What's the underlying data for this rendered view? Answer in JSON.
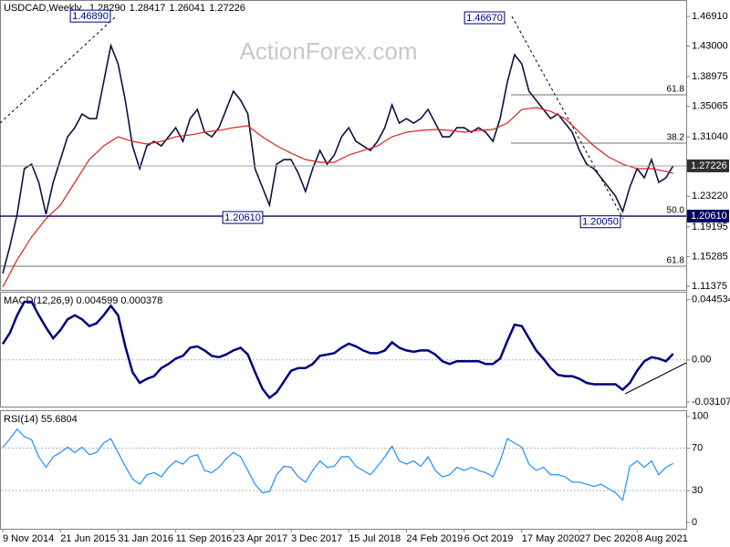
{
  "chart_data": [
    {
      "type": "line",
      "symbol": "USDCAD,Weekly",
      "ohlc": [
        "1.28290",
        "1.28417",
        "1.26041",
        "1.27226"
      ],
      "watermark": "ActionForex.com",
      "ylim": [
        1.11375,
        1.4691
      ],
      "yticks": [
        {
          "value": 1.4691,
          "label": "1.46910"
        },
        {
          "value": 1.43,
          "label": "1.43000"
        },
        {
          "value": 1.38975,
          "label": "1.38975"
        },
        {
          "value": 1.35065,
          "label": "1.35065"
        },
        {
          "value": 1.3104,
          "label": "1.31040"
        },
        {
          "value": 1.2322,
          "label": "1.23220"
        },
        {
          "value": 1.19195,
          "label": "1.19195"
        },
        {
          "value": 1.15285,
          "label": "1.15285"
        },
        {
          "value": 1.11375,
          "label": "1.11375"
        }
      ],
      "price_lines": [
        {
          "value": 1.27226,
          "label": "1.27226",
          "color": "#a0a0a0"
        },
        {
          "value": 1.2061,
          "label": "1.20610",
          "color": "#000060"
        }
      ],
      "levels": [
        {
          "value": 1.3659,
          "label": "61.8"
        },
        {
          "value": 1.3022,
          "label": "38.2"
        },
        {
          "value": 1.2061,
          "label": "50.0"
        },
        {
          "value": 1.1402,
          "label": "61.8"
        }
      ],
      "annotations": [
        {
          "text": "1.46890",
          "value": 1.4689
        },
        {
          "text": "1.46670",
          "value": 1.4667
        },
        {
          "text": "1.20610",
          "value": 1.2061
        },
        {
          "text": "1.20050",
          "value": 1.2005
        }
      ],
      "series": [
        {
          "color": "#101040",
          "values": [
            1.1306,
            1.1666,
            1.2086,
            1.2686,
            1.2746,
            1.2506,
            1.2086,
            1.2506,
            1.2806,
            1.3106,
            1.3226,
            1.3406,
            1.3346,
            1.3346,
            1.3827,
            1.4307,
            1.4067,
            1.3587,
            1.2986,
            1.2686,
            1.2986,
            1.3046,
            1.2986,
            1.3106,
            1.3226,
            1.3046,
            1.3346,
            1.3466,
            1.3166,
            1.3106,
            1.3226,
            1.3466,
            1.3707,
            1.3587,
            1.3406,
            1.2686,
            1.2446,
            1.2206,
            1.2746,
            1.2806,
            1.2806,
            1.2626,
            1.2386,
            1.2686,
            1.2926,
            1.2746,
            1.2866,
            1.3106,
            1.3226,
            1.3046,
            1.2986,
            1.2926,
            1.3046,
            1.3226,
            1.3526,
            1.3286,
            1.3346,
            1.3286,
            1.3346,
            1.3466,
            1.3286,
            1.3106,
            1.3106,
            1.3226,
            1.3226,
            1.3166,
            1.3226,
            1.3166,
            1.3046,
            1.3346,
            1.3827,
            1.4187,
            1.4067,
            1.3707,
            1.3587,
            1.3466,
            1.3346,
            1.3406,
            1.3286,
            1.3166,
            1.2926,
            1.2746,
            1.2686,
            1.2566,
            1.2446,
            1.2326,
            1.2122,
            1.2446,
            1.2686,
            1.2566,
            1.2806,
            1.2506,
            1.2566,
            1.27226
          ]
        },
        {
          "color": "#e02020",
          "values": [
            1.1126,
            1.1306,
            1.1486,
            1.1636,
            1.1786,
            1.1906,
            1.2026,
            1.2116,
            1.2206,
            1.2356,
            1.2506,
            1.2656,
            1.2806,
            1.2896,
            1.2986,
            1.3046,
            1.3106,
            1.3076,
            1.3046,
            1.3028,
            1.301,
            1.3028,
            1.3046,
            1.3076,
            1.3106,
            1.3118,
            1.313,
            1.3148,
            1.3166,
            1.3178,
            1.319,
            1.3208,
            1.3226,
            1.3238,
            1.325,
            1.3178,
            1.3106,
            1.3046,
            1.2986,
            1.2938,
            1.289,
            1.2848,
            1.2806,
            1.2788,
            1.277,
            1.277,
            1.277,
            1.2818,
            1.2866,
            1.2896,
            1.2926,
            1.2956,
            1.2986,
            1.3046,
            1.3106,
            1.3136,
            1.3166,
            1.3178,
            1.319,
            1.3196,
            1.3202,
            1.3196,
            1.319,
            1.3178,
            1.3166,
            1.3178,
            1.319,
            1.3196,
            1.3202,
            1.3244,
            1.3286,
            1.3376,
            1.3466,
            1.3478,
            1.349,
            1.3466,
            1.3442,
            1.3394,
            1.3346,
            1.3256,
            1.3166,
            1.3076,
            1.2986,
            1.2914,
            1.2842,
            1.2794,
            1.2746,
            1.2716,
            1.2686,
            1.2686,
            1.2686,
            1.2668,
            1.265,
            1.2626
          ]
        }
      ]
    },
    {
      "type": "line",
      "label": "MACD(12,26,9) 0.004599 0.000378",
      "ylim": [
        -0.0345,
        0.0497
      ],
      "yticks": [
        0.044534,
        {
          "value": 0,
          "label": "0.00"
        },
        -0.031072
      ],
      "series": [
        {
          "color": "#000080",
          "values": [
            0.0118,
            0.02,
            0.033,
            0.043,
            0.043,
            0.033,
            0.024,
            0.016,
            0.022,
            0.03,
            0.033,
            0.03,
            0.025,
            0.027,
            0.033,
            0.04,
            0.033,
            0.01,
            -0.009,
            -0.017,
            -0.014,
            -0.012,
            -0.006,
            -0.003,
            0.001,
            0.003,
            0.009,
            0.01,
            0.007,
            0.003,
            0.002,
            0.004,
            0.007,
            0.009,
            0.004,
            -0.009,
            -0.021,
            -0.028,
            -0.024,
            -0.016,
            -0.008,
            -0.006,
            -0.006,
            -0.003,
            0.003,
            0.004,
            0.005,
            0.009,
            0.012,
            0.01,
            0.007,
            0.005,
            0.005,
            0.007,
            0.013,
            0.009,
            0.007,
            0.006,
            0.007,
            0.007,
            0.004,
            -0.001,
            -0.003,
            -0.001,
            -0.001,
            -0.001,
            -0.001,
            -0.003,
            -0.003,
            0.001,
            0.014,
            0.026,
            0.025,
            0.016,
            0.007,
            0.001,
            -0.006,
            -0.011,
            -0.012,
            -0.012,
            -0.014,
            -0.017,
            -0.018,
            -0.018,
            -0.018,
            -0.018,
            -0.022,
            -0.017,
            -0.008,
            -0.001,
            0.002,
            0.001,
            -0.001,
            0.0046
          ]
        }
      ]
    },
    {
      "type": "line",
      "label": "RSI(14) 55.6804",
      "ylim": [
        -6,
        105
      ],
      "yticks": [
        100,
        70,
        30,
        0
      ],
      "categories": [
        "9 Nov 2014",
        null,
        null,
        null,
        null,
        null,
        null,
        null,
        "21 Jun 2015",
        null,
        null,
        null,
        null,
        null,
        null,
        null,
        "31 Jan 2016",
        null,
        null,
        null,
        null,
        null,
        null,
        null,
        "11 Sep 2016",
        null,
        null,
        null,
        null,
        null,
        null,
        null,
        "23 Apr 2017",
        null,
        null,
        null,
        null,
        null,
        null,
        null,
        "3 Dec 2017",
        null,
        null,
        null,
        null,
        null,
        null,
        null,
        "15 Jul 2018",
        null,
        null,
        null,
        null,
        null,
        null,
        null,
        "24 Feb 2019",
        null,
        null,
        null,
        null,
        null,
        null,
        null,
        "6 Oct 2019",
        null,
        null,
        null,
        null,
        null,
        null,
        null,
        "17 May 2020",
        null,
        null,
        null,
        null,
        null,
        null,
        null,
        "27 Dec 2020",
        null,
        null,
        null,
        null,
        null,
        null,
        null,
        "8 Aug 2021",
        null,
        null,
        null,
        null,
        null
      ],
      "series": [
        {
          "color": "#1e90ff",
          "values": [
            70.7,
            79,
            88,
            81,
            78,
            62,
            52,
            62,
            66,
            71,
            66,
            71,
            64,
            66,
            75,
            79,
            66,
            53,
            41,
            36,
            45,
            47,
            43,
            52,
            58,
            55,
            62,
            64,
            49,
            47,
            52,
            60,
            66,
            62,
            49,
            36,
            28,
            29,
            45,
            53,
            52,
            43,
            38,
            49,
            58,
            52,
            53,
            62,
            62,
            53,
            49,
            45,
            53,
            62,
            72,
            58,
            55,
            58,
            53,
            62,
            49,
            43,
            45,
            52,
            49,
            52,
            49,
            47,
            43,
            58,
            79,
            75,
            71,
            55,
            49,
            52,
            45,
            45,
            43,
            38,
            38,
            36,
            34,
            36,
            32,
            28,
            21,
            53,
            58,
            52,
            58,
            45,
            52,
            55.6804
          ]
        }
      ]
    }
  ]
}
